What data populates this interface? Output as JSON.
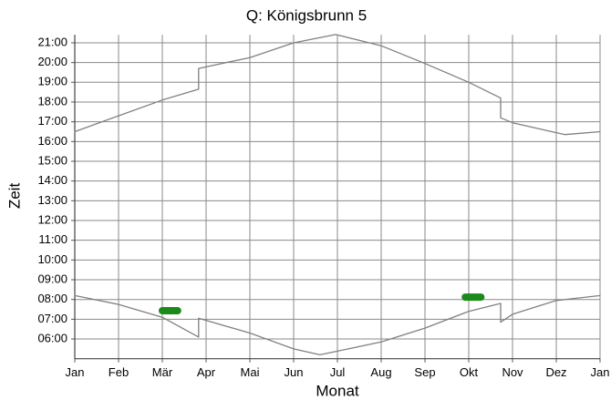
{
  "chart_data": {
    "type": "line",
    "title": "Q: Königsbrunn 5",
    "xlabel": "Monat",
    "ylabel": "Zeit",
    "xlim": [
      0,
      12
    ],
    "xticks": [
      {
        "value": 0,
        "label": "Jan"
      },
      {
        "value": 1,
        "label": "Feb"
      },
      {
        "value": 2,
        "label": "Mär"
      },
      {
        "value": 3,
        "label": "Apr"
      },
      {
        "value": 4,
        "label": "Mai"
      },
      {
        "value": 5,
        "label": "Jun"
      },
      {
        "value": 6,
        "label": "Jul"
      },
      {
        "value": 7,
        "label": "Aug"
      },
      {
        "value": 8,
        "label": "Sep"
      },
      {
        "value": 9,
        "label": "Okt"
      },
      {
        "value": 10,
        "label": "Nov"
      },
      {
        "value": 11,
        "label": "Dez"
      },
      {
        "value": 12,
        "label": "Jan"
      }
    ],
    "ylim": [
      5,
      21.4
    ],
    "yticks": [
      {
        "value": 6,
        "label": "06:00"
      },
      {
        "value": 7,
        "label": "07:00"
      },
      {
        "value": 8,
        "label": "08:00"
      },
      {
        "value": 9,
        "label": "09:00"
      },
      {
        "value": 10,
        "label": "10:00"
      },
      {
        "value": 11,
        "label": "11:00"
      },
      {
        "value": 12,
        "label": "12:00"
      },
      {
        "value": 13,
        "label": "13:00"
      },
      {
        "value": 14,
        "label": "14:00"
      },
      {
        "value": 15,
        "label": "15:00"
      },
      {
        "value": 16,
        "label": "16:00"
      },
      {
        "value": 17,
        "label": "17:00"
      },
      {
        "value": 18,
        "label": "18:00"
      },
      {
        "value": 19,
        "label": "19:00"
      },
      {
        "value": 20,
        "label": "20:00"
      },
      {
        "value": 21,
        "label": "21:00"
      }
    ],
    "grid": true,
    "series": [
      {
        "color": "#808080",
        "line_width": 1.3,
        "x": [
          0,
          1,
          2,
          2.83,
          2.83,
          4,
          5,
          5.96,
          7,
          8,
          9,
          9.73,
          9.73,
          10,
          11,
          11.2,
          12
        ],
        "values": [
          16.5,
          17.3,
          18.1,
          18.65,
          19.7,
          20.25,
          21.0,
          21.42,
          20.85,
          19.95,
          19.0,
          18.2,
          17.2,
          16.95,
          16.45,
          16.35,
          16.5
        ]
      },
      {
        "color": "#808080",
        "line_width": 1.3,
        "x": [
          0,
          1,
          2,
          2.83,
          2.83,
          4,
          5,
          5.6,
          7,
          8,
          9,
          9.73,
          9.73,
          10,
          11,
          12
        ],
        "values": [
          8.2,
          7.75,
          7.1,
          6.1,
          7.05,
          6.3,
          5.5,
          5.2,
          5.85,
          6.55,
          7.4,
          7.8,
          6.85,
          7.25,
          7.95,
          8.2
        ]
      },
      {
        "color": "#1a8a1a",
        "line_width": 8,
        "x": [
          2.0,
          2.35
        ],
        "values": [
          7.43,
          7.43
        ]
      },
      {
        "color": "#1a8a1a",
        "line_width": 8,
        "x": [
          8.92,
          9.28
        ],
        "values": [
          8.12,
          8.12
        ]
      }
    ]
  }
}
